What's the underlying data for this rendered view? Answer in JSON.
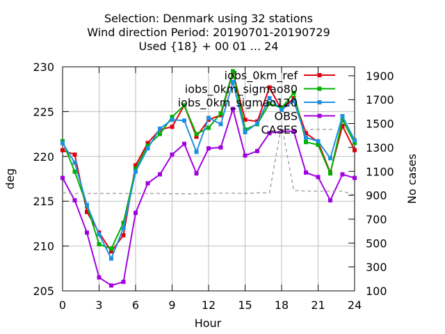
{
  "chart_data": {
    "type": "line",
    "title_lines": [
      "Selection: Denmark using    32 stations",
      "Wind direction   Period: 20190701-20190729",
      "Used {18} + 00 01 ... 24"
    ],
    "xlabel": "Hour",
    "ylabel": "deg",
    "y2label": "No cases",
    "xlim": [
      0,
      24
    ],
    "ylim": [
      205,
      230
    ],
    "y2lim": [
      100,
      1975
    ],
    "x_ticks": [
      0,
      3,
      6,
      9,
      12,
      15,
      18,
      21,
      24
    ],
    "y_ticks": [
      205,
      210,
      215,
      220,
      225,
      230
    ],
    "y2_ticks": [
      100,
      300,
      500,
      700,
      900,
      1100,
      1300,
      1500,
      1700,
      1900
    ],
    "x": [
      0,
      1,
      2,
      3,
      4,
      5,
      6,
      7,
      8,
      9,
      10,
      11,
      12,
      13,
      14,
      15,
      16,
      17,
      18,
      19,
      20,
      21,
      22,
      23,
      24
    ],
    "series": [
      {
        "name": "iobs_0km_ref",
        "color": "#e0000e",
        "values": [
          220.7,
          220.2,
          213.8,
          211.5,
          209.4,
          211.2,
          219.0,
          221.5,
          223.0,
          223.3,
          225.7,
          222.2,
          224.1,
          224.6,
          229.4,
          224.1,
          223.9,
          227.7,
          225.2,
          226.5,
          222.6,
          221.6,
          218.2,
          223.4,
          220.7
        ]
      },
      {
        "name": "iobs_0km_sigmao80",
        "color": "#00b000",
        "values": [
          221.7,
          218.3,
          214.5,
          210.2,
          209.7,
          212.6,
          218.6,
          221.2,
          222.5,
          224.4,
          225.7,
          222.5,
          223.2,
          224.8,
          229.5,
          223.0,
          223.6,
          225.9,
          225.4,
          227.1,
          221.6,
          221.3,
          218.1,
          224.1,
          221.5
        ]
      },
      {
        "name": "iobs_0km_sigmao120",
        "color": "#1e90e0",
        "values": [
          221.5,
          219.3,
          214.6,
          211.3,
          208.6,
          212.0,
          218.3,
          220.9,
          223.1,
          224.1,
          224.0,
          220.5,
          224.3,
          223.6,
          228.3,
          222.7,
          223.7,
          226.5,
          225.2,
          226.2,
          222.1,
          221.7,
          219.8,
          224.5,
          221.8
        ]
      },
      {
        "name": "OBS",
        "color": "#a000e0",
        "values": [
          217.6,
          215.1,
          211.5,
          206.5,
          205.6,
          206.0,
          213.7,
          217.0,
          218.0,
          220.2,
          221.4,
          218.1,
          220.9,
          221.0,
          225.3,
          220.1,
          220.6,
          222.6,
          222.8,
          222.8,
          218.2,
          217.7,
          215.1,
          218.0,
          217.6
        ]
      },
      {
        "name": "CASES",
        "color": "#999999",
        "axis": "right",
        "values": [
          920,
          915,
          915,
          915,
          915,
          915,
          915,
          915,
          915,
          912,
          912,
          912,
          918,
          918,
          918,
          915,
          920,
          920,
          1490,
          940,
          935,
          935,
          935,
          935,
          900
        ]
      }
    ]
  }
}
